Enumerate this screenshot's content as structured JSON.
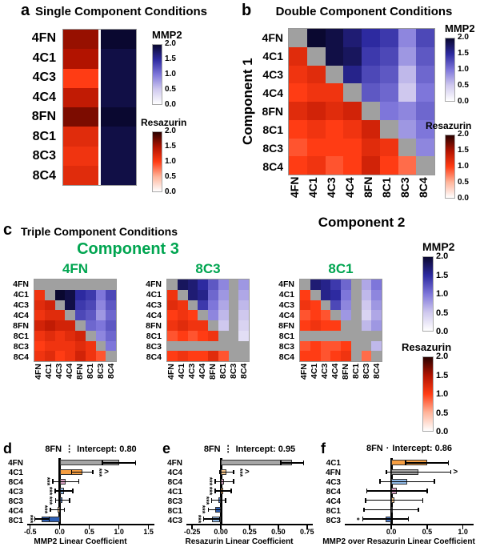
{
  "figure": {
    "section_c_label": "c",
    "section_c_title": "Triple Component Conditions",
    "component3_heading": "Component 3"
  },
  "colorbars": {
    "mmp2": {
      "title": "MMP2",
      "ticks": [
        "2.0",
        "1.5",
        "1.0",
        "0.5",
        "0.0"
      ]
    },
    "resazurin": {
      "title": "Resazurin",
      "ticks": [
        "2.0",
        "1.5",
        "1.0",
        "0.5",
        "0.0"
      ]
    }
  },
  "colors": {
    "gray_cell": "#a0a0a0",
    "green_label": "#00a550",
    "mmp2_stops": [
      "#ffffff",
      "#cfc8ee",
      "#7e76da",
      "#2d2aa0",
      "#0a0830"
    ],
    "resazurin_stops": [
      "#ffffff",
      "#ffb49a",
      "#ff3c14",
      "#b21300",
      "#2a0200"
    ],
    "bar_colors": {
      "4FN": "#a6a6a6",
      "4C1": "#f59e42",
      "4C3": "#92bbe8",
      "4C4": "#f8c98f",
      "8C1": "#2d5fb5",
      "8C3": "#4f7fd0",
      "8C4": "#d9a3c4"
    }
  },
  "chart_data": [
    {
      "id": "a",
      "type": "heatmap",
      "panel_label": "a",
      "title": "Single Component Conditions",
      "row_labels": [
        "4FN",
        "4C1",
        "4C3",
        "4C4",
        "8FN",
        "8C1",
        "8C3",
        "8C4"
      ],
      "col_scales": [
        "resazurin",
        "mmp2"
      ],
      "value_range": [
        0,
        2
      ],
      "col_gap": 3,
      "cells": [
        [
          "r1.6",
          "m2.0"
        ],
        [
          "r1.5",
          "m1.9"
        ],
        [
          "r1.0",
          "m1.9"
        ],
        [
          "r1.4",
          "m1.9"
        ],
        [
          "r1.7",
          "m2.0"
        ],
        [
          "r1.2",
          "m1.9"
        ],
        [
          "r1.1",
          "m1.9"
        ],
        [
          "r1.2",
          "m1.9"
        ]
      ]
    },
    {
      "id": "b",
      "type": "heatmap",
      "panel_label": "b",
      "title": "Double Component Conditions",
      "xlabel": "Component 2",
      "ylabel": "Component 1",
      "labels": [
        "4FN",
        "4C1",
        "4C3",
        "4C4",
        "8FN",
        "8C1",
        "8C3",
        "8C4"
      ],
      "value_range": [
        0,
        2
      ],
      "cells": [
        [
          "x",
          "m2.0",
          "m1.9",
          "m1.7",
          "m1.5",
          "m1.4",
          "m0.9",
          "m1.3"
        ],
        [
          "r1.2",
          "x",
          "m1.9",
          "m1.8",
          "m1.4",
          "m1.3",
          "m0.8",
          "m1.2"
        ],
        [
          "r1.1",
          "r1.2",
          "x",
          "m1.6",
          "m1.3",
          "m1.2",
          "m0.6",
          "m1.1"
        ],
        [
          "r1.0",
          "r1.1",
          "r1.1",
          "x",
          "m1.2",
          "m1.1",
          "m0.5",
          "m1.0"
        ],
        [
          "r1.2",
          "r1.3",
          "r1.2",
          "r1.3",
          "x",
          "m1.0",
          "m0.9",
          "m1.1"
        ],
        [
          "r1.0",
          "r1.1",
          "r1.0",
          "r1.1",
          "r1.3",
          "x",
          "m0.8",
          "m1.0"
        ],
        [
          "r0.9",
          "r1.0",
          "r1.0",
          "r1.0",
          "r1.2",
          "r1.1",
          "x",
          "m0.9"
        ],
        [
          "r1.0",
          "r1.1",
          "r0.9",
          "r1.0",
          "r1.3",
          "r1.0",
          "r0.8",
          "x"
        ]
      ]
    },
    {
      "id": "c1",
      "type": "heatmap",
      "component3": "4FN",
      "labels": [
        "4FN",
        "4C1",
        "4C3",
        "4C4",
        "8FN",
        "8C1",
        "8C3",
        "8C4"
      ],
      "value_range": [
        0,
        2
      ],
      "cells": [
        [
          "x",
          "x",
          "x",
          "x",
          "x",
          "x",
          "x",
          "x"
        ],
        [
          "r1.1",
          "x",
          "m2.0",
          "m1.9",
          "m1.5",
          "m1.4",
          "m1.0",
          "m1.3"
        ],
        [
          "r1.2",
          "r1.3",
          "x",
          "m1.9",
          "m1.4",
          "m1.3",
          "m0.9",
          "m1.2"
        ],
        [
          "r1.1",
          "r1.2",
          "r1.2",
          "x",
          "m1.3",
          "m1.2",
          "m0.8",
          "m1.1"
        ],
        [
          "r1.3",
          "r1.4",
          "r1.3",
          "r1.3",
          "x",
          "m1.1",
          "m1.0",
          "m1.2"
        ],
        [
          "r1.1",
          "r1.2",
          "r1.1",
          "r1.2",
          "r1.3",
          "x",
          "m0.9",
          "m1.1"
        ],
        [
          "r1.0",
          "r1.1",
          "r1.1",
          "r1.1",
          "r1.2",
          "r1.1",
          "x",
          "m1.0"
        ],
        [
          "r1.1",
          "r1.2",
          "r1.0",
          "r1.1",
          "r1.3",
          "r1.1",
          "r0.9",
          "x"
        ]
      ]
    },
    {
      "id": "c2",
      "type": "heatmap",
      "component3": "8C3",
      "labels": [
        "4FN",
        "4C1",
        "4C3",
        "4C4",
        "8FN",
        "8C1",
        "8C3",
        "8C4"
      ],
      "value_range": [
        0,
        2
      ],
      "cells": [
        [
          "x",
          "m1.8",
          "m1.7",
          "m1.5",
          "m1.2",
          "m0.9",
          "x",
          "m0.8"
        ],
        [
          "r1.1",
          "x",
          "m1.7",
          "m1.6",
          "m1.1",
          "m0.8",
          "x",
          "m0.7"
        ],
        [
          "r1.2",
          "r1.1",
          "x",
          "m1.4",
          "m1.0",
          "m0.7",
          "x",
          "m0.6"
        ],
        [
          "r1.0",
          "r1.1",
          "r1.0",
          "x",
          "m0.9",
          "m0.6",
          "x",
          "m0.5"
        ],
        [
          "r1.1",
          "r1.2",
          "r1.1",
          "r1.1",
          "x",
          "m0.5",
          "x",
          "m0.4"
        ],
        [
          "r0.9",
          "r1.0",
          "r0.9",
          "r1.0",
          "r1.1",
          "x",
          "x",
          "m0.3"
        ],
        [
          "x",
          "x",
          "x",
          "x",
          "x",
          "x",
          "x",
          "x"
        ],
        [
          "r1.0",
          "r1.1",
          "r1.0",
          "r1.0",
          "r1.2",
          "r0.9",
          "x",
          "x"
        ]
      ]
    },
    {
      "id": "c3",
      "type": "heatmap",
      "component3": "8C1",
      "labels": [
        "4FN",
        "4C1",
        "4C3",
        "4C4",
        "8FN",
        "8C1",
        "8C3",
        "8C4"
      ],
      "value_range": [
        0,
        2
      ],
      "cells": [
        [
          "x",
          "m1.7",
          "m1.6",
          "m1.4",
          "m1.1",
          "x",
          "m0.7",
          "m1.0"
        ],
        [
          "r1.0",
          "x",
          "m1.6",
          "m1.5",
          "m1.0",
          "x",
          "m0.6",
          "m0.9"
        ],
        [
          "r1.1",
          "r1.0",
          "x",
          "m1.3",
          "m0.9",
          "x",
          "m0.5",
          "m0.8"
        ],
        [
          "r0.9",
          "r1.0",
          "r0.9",
          "x",
          "m0.8",
          "x",
          "m0.4",
          "m0.7"
        ],
        [
          "r1.0",
          "r1.1",
          "r1.0",
          "r1.0",
          "x",
          "x",
          "m0.6",
          "m0.8"
        ],
        [
          "x",
          "x",
          "x",
          "x",
          "x",
          "x",
          "x",
          "x"
        ],
        [
          "r0.9",
          "r1.0",
          "r0.9",
          "r0.9",
          "r1.0",
          "x",
          "x",
          "m0.6"
        ],
        [
          "r1.0",
          "r1.0",
          "r0.9",
          "r1.0",
          "r1.1",
          "x",
          "r0.8",
          "x"
        ]
      ]
    },
    {
      "id": "d",
      "type": "bar",
      "panel_label": "d",
      "reference": "8FN",
      "separator": "⋮",
      "intercept_label": "Intercept: 0.80",
      "xlabel": "MMP2 Linear Coefficient",
      "xlim": [
        -0.55,
        1.6
      ],
      "xticks": [
        "-0.5",
        "0.0",
        "0.5",
        "1.0",
        "1.5"
      ],
      "xtick_values": [
        -0.5,
        0.0,
        0.5,
        1.0,
        1.5
      ],
      "rows": [
        {
          "label": "4FN",
          "value": 1.0,
          "error": 0.28,
          "sig": "",
          "marker": ""
        },
        {
          "label": "4C1",
          "value": 0.38,
          "error": 0.18,
          "sig": "***",
          "sig_side": "right",
          "marker": ">"
        },
        {
          "label": "8C4",
          "value": 0.1,
          "error": 0.22,
          "sig": "***",
          "sig_side": "left",
          "marker": ""
        },
        {
          "label": "4C3",
          "value": 0.07,
          "error": 0.15,
          "sig": "***",
          "sig_side": "left",
          "marker": ""
        },
        {
          "label": "8C3",
          "value": 0.05,
          "error": 0.12,
          "sig": "***",
          "sig_side": "left",
          "marker": ""
        },
        {
          "label": "4C4",
          "value": -0.04,
          "error": 0.12,
          "sig": "***",
          "sig_side": "left",
          "marker": ""
        },
        {
          "label": "8C1",
          "value": -0.3,
          "error": 0.12,
          "sig": "***",
          "sig_side": "left",
          "marker": ""
        }
      ]
    },
    {
      "id": "e",
      "type": "bar",
      "panel_label": "e",
      "reference": "8FN",
      "separator": "⋮",
      "intercept_label": "Intercept: 0.95",
      "xlabel": "Resazurin Linear Coefficient",
      "xlim": [
        -0.3,
        0.8
      ],
      "xticks": [
        "-0.25",
        "0.00",
        "0.25",
        "0.50",
        "0.75"
      ],
      "xtick_values": [
        -0.25,
        0.0,
        0.25,
        0.5,
        0.75
      ],
      "rows": [
        {
          "label": "4FN",
          "value": 0.62,
          "error": 0.1,
          "sig": "",
          "marker": ""
        },
        {
          "label": "4C4",
          "value": 0.05,
          "error": 0.06,
          "sig": "***",
          "sig_side": "right",
          "marker": ">"
        },
        {
          "label": "8C4",
          "value": 0.03,
          "error": 0.08,
          "sig": "***",
          "sig_side": "left",
          "marker": ""
        },
        {
          "label": "4C1",
          "value": 0.02,
          "error": 0.07,
          "sig": "***",
          "sig_side": "left",
          "marker": ""
        },
        {
          "label": "8C3",
          "value": -0.02,
          "error": 0.06,
          "sig": "***",
          "sig_side": "left",
          "marker": ""
        },
        {
          "label": "8C1",
          "value": -0.05,
          "error": 0.06,
          "sig": "***",
          "sig_side": "left",
          "marker": ""
        },
        {
          "label": "4C3",
          "value": -0.08,
          "error": 0.07,
          "sig": "***",
          "sig_side": "left",
          "marker": ""
        }
      ]
    },
    {
      "id": "f",
      "type": "bar",
      "panel_label": "f",
      "reference": "8FN",
      "separator": "·",
      "intercept_label": "Intercept: 0.86",
      "xlabel": "MMP2 over Resazurin Linear Coefficient",
      "xlim": [
        -0.65,
        1.15
      ],
      "xticks": [
        "0.0",
        "0.5",
        "1.0"
      ],
      "xtick_values": [
        0.0,
        0.5,
        1.0
      ],
      "rows": [
        {
          "label": "4C1",
          "value": 0.5,
          "error": 0.3,
          "sig": "",
          "marker": ""
        },
        {
          "label": "4FN",
          "value": 0.38,
          "error": 0.45,
          "sig": "",
          "sig_side": "right",
          "marker": ">"
        },
        {
          "label": "4C3",
          "value": 0.22,
          "error": 0.38,
          "sig": "",
          "marker": ""
        },
        {
          "label": "8C4",
          "value": 0.08,
          "error": 0.42,
          "sig": "",
          "marker": ""
        },
        {
          "label": "4C4",
          "value": 0.04,
          "error": 0.4,
          "sig": "",
          "marker": ""
        },
        {
          "label": "8C1",
          "value": 0.0,
          "error": 0.38,
          "sig": "",
          "marker": ""
        },
        {
          "label": "8C3",
          "value": -0.08,
          "error": 0.32,
          "sig": "*",
          "sig_side": "left",
          "marker": ""
        }
      ]
    }
  ]
}
